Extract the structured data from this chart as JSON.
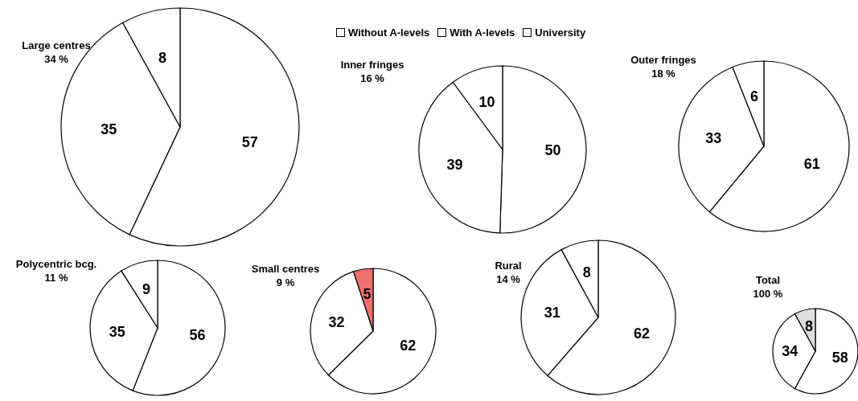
{
  "chart_data": [
    {
      "type": "pie",
      "title": "Large centres",
      "subtitle": "34 %",
      "categories": [
        "Without A-levels",
        "With A-levels",
        "University"
      ],
      "values": [
        57,
        35,
        8
      ],
      "colors": [
        "#ffffff",
        "#ffffff",
        "#ffffff"
      ],
      "data_labels": true,
      "legend": "top"
    },
    {
      "type": "pie",
      "title": "Inner fringes",
      "subtitle": "16 %",
      "categories": [
        null,
        null,
        null
      ],
      "values": [
        50,
        39,
        10
      ],
      "colors": [
        "#ffffff",
        "#ffffff",
        "#ffffff"
      ],
      "data_labels": true
    },
    {
      "type": "pie",
      "title": "Outer fringes",
      "subtitle": "18 %",
      "categories": [
        null,
        null,
        null
      ],
      "values": [
        61,
        33,
        6
      ],
      "colors": [
        "#ffffff",
        "#ffffff",
        "#ffffff"
      ],
      "data_labels": true
    },
    {
      "type": "pie",
      "title": "Polycentric bcg.",
      "subtitle": "11 %",
      "categories": [
        null,
        null,
        null
      ],
      "values": [
        56,
        35,
        9
      ],
      "colors": [
        "#ffffff",
        "#ffffff",
        "#ffffff"
      ],
      "data_labels": true
    },
    {
      "type": "pie",
      "title": "Small centres",
      "subtitle": "9 %",
      "categories": [
        null,
        null,
        null
      ],
      "values": [
        62,
        32,
        5
      ],
      "colors": [
        "#ffffff",
        "#ffffff",
        "#f07070"
      ],
      "data_labels": true
    },
    {
      "type": "pie",
      "title": "Rural",
      "subtitle": "14 %",
      "categories": [
        null,
        null,
        null
      ],
      "values": [
        62,
        31,
        8
      ],
      "colors": [
        "#ffffff",
        "#ffffff",
        "#ffffff"
      ],
      "data_labels": true
    },
    {
      "type": "pie",
      "title": "Total",
      "subtitle": "100 %",
      "categories": [
        null,
        null,
        null
      ],
      "values": [
        58,
        34,
        8
      ],
      "colors": [
        "#ffffff",
        "#ffffff",
        "#dddddd"
      ],
      "data_labels": true
    }
  ]
}
